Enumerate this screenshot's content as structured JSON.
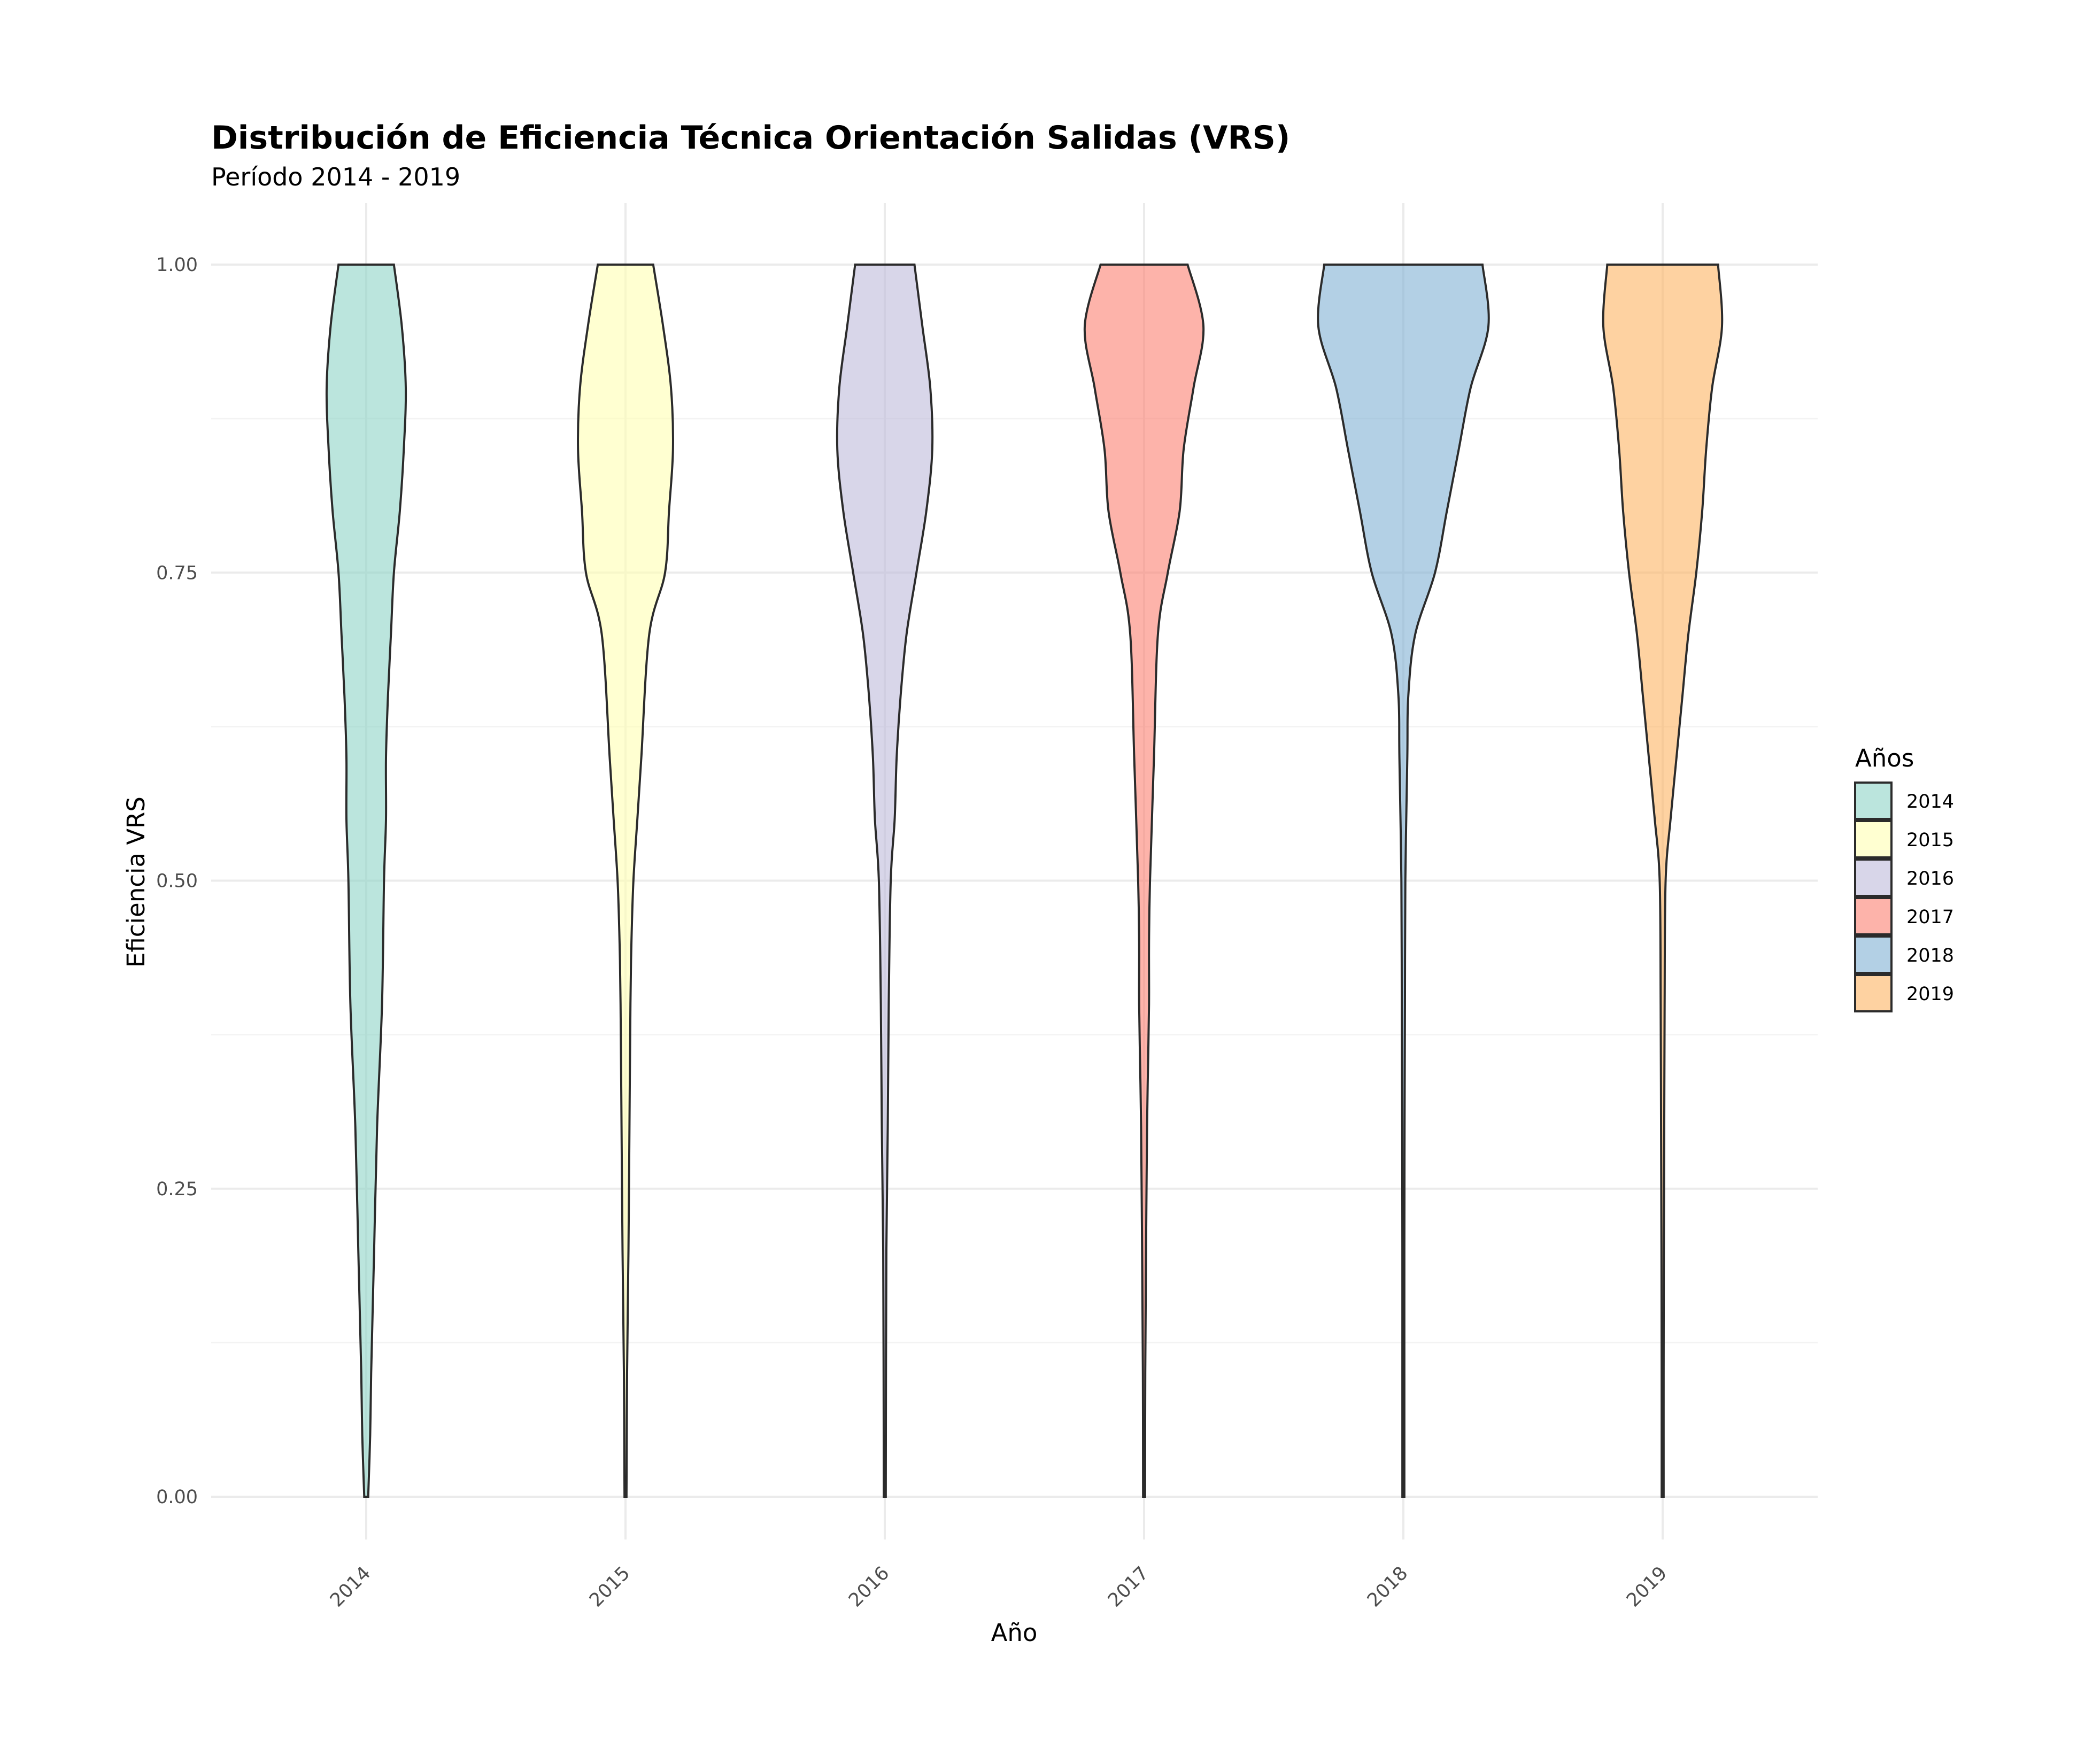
{
  "chart_data": {
    "type": "violin",
    "title": "Distribución de Eficiencia Técnica Orientación Salidas (VRS)",
    "subtitle": "Período 2014 - 2019",
    "xlabel": "Año",
    "ylabel": "Eficiencia VRS",
    "ylim": [
      0,
      1
    ],
    "yticks": [
      "0.00",
      "0.25",
      "0.50",
      "0.75",
      "1.00"
    ],
    "categories": [
      "2014",
      "2015",
      "2016",
      "2017",
      "2018",
      "2019"
    ],
    "grid": true,
    "legend": {
      "title": "Años",
      "position": "right"
    },
    "series": [
      {
        "name": "2014",
        "color": "#8DD3C7",
        "y_range": [
          0.0,
          1.0
        ],
        "density": [
          [
            0.0,
            0.01
          ],
          [
            0.05,
            0.02
          ],
          [
            0.1,
            0.025
          ],
          [
            0.2,
            0.04
          ],
          [
            0.3,
            0.055
          ],
          [
            0.4,
            0.08
          ],
          [
            0.5,
            0.09
          ],
          [
            0.55,
            0.1
          ],
          [
            0.6,
            0.1
          ],
          [
            0.65,
            0.11
          ],
          [
            0.7,
            0.125
          ],
          [
            0.75,
            0.14
          ],
          [
            0.8,
            0.17
          ],
          [
            0.85,
            0.19
          ],
          [
            0.9,
            0.2
          ],
          [
            0.95,
            0.18
          ],
          [
            1.0,
            0.14
          ]
        ]
      },
      {
        "name": "2015",
        "color": "#FFFFB3",
        "y_range": [
          0.0,
          1.0
        ],
        "density": [
          [
            0.0,
            0.005
          ],
          [
            0.1,
            0.008
          ],
          [
            0.2,
            0.015
          ],
          [
            0.3,
            0.02
          ],
          [
            0.4,
            0.025
          ],
          [
            0.45,
            0.03
          ],
          [
            0.5,
            0.04
          ],
          [
            0.55,
            0.06
          ],
          [
            0.6,
            0.08
          ],
          [
            0.7,
            0.12
          ],
          [
            0.75,
            0.2
          ],
          [
            0.8,
            0.22
          ],
          [
            0.85,
            0.24
          ],
          [
            0.9,
            0.23
          ],
          [
            0.95,
            0.19
          ],
          [
            1.0,
            0.14
          ]
        ]
      },
      {
        "name": "2016",
        "color": "#BEBADA",
        "y_range": [
          0.0,
          1.0
        ],
        "density": [
          [
            0.0,
            0.005
          ],
          [
            0.1,
            0.006
          ],
          [
            0.2,
            0.008
          ],
          [
            0.3,
            0.015
          ],
          [
            0.4,
            0.02
          ],
          [
            0.5,
            0.03
          ],
          [
            0.55,
            0.05
          ],
          [
            0.6,
            0.06
          ],
          [
            0.65,
            0.08
          ],
          [
            0.7,
            0.11
          ],
          [
            0.75,
            0.16
          ],
          [
            0.8,
            0.21
          ],
          [
            0.85,
            0.24
          ],
          [
            0.9,
            0.23
          ],
          [
            0.95,
            0.19
          ],
          [
            1.0,
            0.15
          ]
        ]
      },
      {
        "name": "2017",
        "color": "#FB8072",
        "y_range": [
          0.0,
          1.0
        ],
        "density": [
          [
            0.0,
            0.005
          ],
          [
            0.1,
            0.006
          ],
          [
            0.2,
            0.01
          ],
          [
            0.3,
            0.015
          ],
          [
            0.35,
            0.02
          ],
          [
            0.4,
            0.025
          ],
          [
            0.45,
            0.025
          ],
          [
            0.5,
            0.03
          ],
          [
            0.6,
            0.05
          ],
          [
            0.7,
            0.07
          ],
          [
            0.75,
            0.12
          ],
          [
            0.8,
            0.18
          ],
          [
            0.85,
            0.2
          ],
          [
            0.9,
            0.25
          ],
          [
            0.95,
            0.3
          ],
          [
            1.0,
            0.22
          ]
        ]
      },
      {
        "name": "2018",
        "color": "#80B1D3",
        "y_range": [
          0.0,
          1.0
        ],
        "density": [
          [
            0.0,
            0.005
          ],
          [
            0.1,
            0.005
          ],
          [
            0.2,
            0.005
          ],
          [
            0.3,
            0.006
          ],
          [
            0.4,
            0.008
          ],
          [
            0.5,
            0.01
          ],
          [
            0.6,
            0.02
          ],
          [
            0.65,
            0.025
          ],
          [
            0.7,
            0.06
          ],
          [
            0.75,
            0.16
          ],
          [
            0.8,
            0.22
          ],
          [
            0.85,
            0.28
          ],
          [
            0.9,
            0.34
          ],
          [
            0.95,
            0.43
          ],
          [
            1.0,
            0.4
          ]
        ]
      },
      {
        "name": "2019",
        "color": "#FDB462",
        "y_range": [
          0.0,
          1.0
        ],
        "density": [
          [
            0.0,
            0.005
          ],
          [
            0.1,
            0.005
          ],
          [
            0.2,
            0.006
          ],
          [
            0.3,
            0.008
          ],
          [
            0.4,
            0.01
          ],
          [
            0.5,
            0.015
          ],
          [
            0.55,
            0.04
          ],
          [
            0.6,
            0.07
          ],
          [
            0.65,
            0.1
          ],
          [
            0.7,
            0.13
          ],
          [
            0.75,
            0.17
          ],
          [
            0.8,
            0.2
          ],
          [
            0.85,
            0.22
          ],
          [
            0.9,
            0.25
          ],
          [
            0.95,
            0.3
          ],
          [
            1.0,
            0.28
          ]
        ]
      }
    ]
  }
}
